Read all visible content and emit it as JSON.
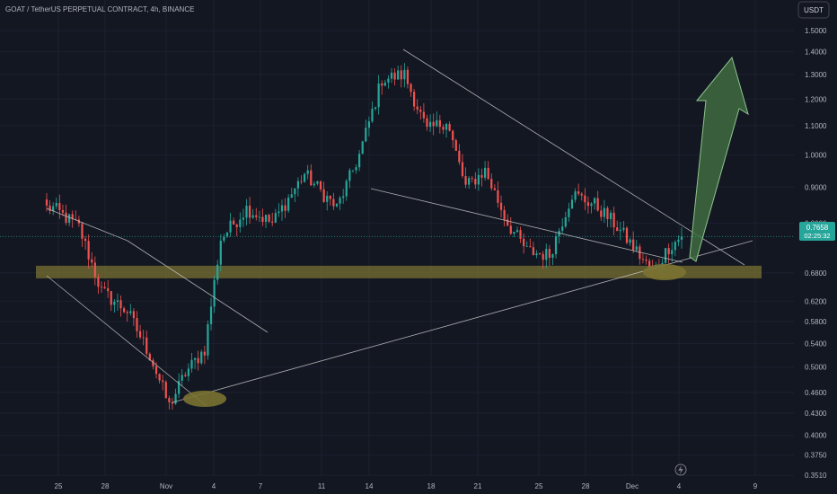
{
  "header": {
    "symbol_line": "GOAT / TetherUS PERPETUAL CONTRACT, 4h, BINANCE",
    "currency_button": "USDT"
  },
  "price_badge": {
    "price": "0.7658",
    "countdown": "02:25:32"
  },
  "colors": {
    "background": "#131722",
    "up": "#26a69a",
    "down": "#ef5350",
    "support_zone": "#7a7232",
    "arrow_fill": "#3f6b3f",
    "arrow_stroke": "#8fc48f",
    "trendline": "#c7c7c7"
  },
  "chart_data": {
    "type": "candlestick",
    "timeframe": "4h",
    "scale": "log",
    "x_ticks": [
      "25",
      "28",
      "Nov",
      "4",
      "7",
      "11",
      "14",
      "18",
      "21",
      "25",
      "28",
      "Dec",
      "4",
      "9"
    ],
    "y_ticks": [
      "1.5000",
      "1.4000",
      "1.3000",
      "1.2000",
      "1.1000",
      "1.0000",
      "0.9000",
      "0.8000",
      "0.6800",
      "0.6200",
      "0.5800",
      "0.5400",
      "0.5000",
      "0.4600",
      "0.4300",
      "0.4000",
      "0.3750",
      "0.3510"
    ],
    "last_price": 0.7658,
    "ylim": [
      0.34,
      1.62
    ],
    "support_zone": [
      0.668,
      0.696
    ],
    "key_points": [
      {
        "time_index": 2,
        "price": 0.84
      },
      {
        "time_index": 10,
        "price": 0.79
      },
      {
        "time_index": 17,
        "price": 0.64
      },
      {
        "time_index": 25,
        "price": 0.6
      },
      {
        "time_index": 32,
        "price": 0.52
      },
      {
        "time_index": 38,
        "price": 0.44
      },
      {
        "time_index": 43,
        "price": 0.49
      },
      {
        "time_index": 49,
        "price": 0.53
      },
      {
        "time_index": 54,
        "price": 0.76
      },
      {
        "time_index": 62,
        "price": 0.84
      },
      {
        "time_index": 70,
        "price": 0.8
      },
      {
        "time_index": 80,
        "price": 0.94
      },
      {
        "time_index": 90,
        "price": 0.84
      },
      {
        "time_index": 97,
        "price": 1.0
      },
      {
        "time_index": 104,
        "price": 1.28
      },
      {
        "time_index": 111,
        "price": 1.3
      },
      {
        "time_index": 118,
        "price": 1.08
      },
      {
        "time_index": 124,
        "price": 1.12
      },
      {
        "time_index": 130,
        "price": 0.9
      },
      {
        "time_index": 136,
        "price": 0.95
      },
      {
        "time_index": 143,
        "price": 0.8
      },
      {
        "time_index": 149,
        "price": 0.73
      },
      {
        "time_index": 156,
        "price": 0.72
      },
      {
        "time_index": 163,
        "price": 0.88
      },
      {
        "time_index": 170,
        "price": 0.85
      },
      {
        "time_index": 176,
        "price": 0.8
      },
      {
        "time_index": 182,
        "price": 0.74
      },
      {
        "time_index": 188,
        "price": 0.68
      },
      {
        "time_index": 193,
        "price": 0.74
      },
      {
        "time_index": 197,
        "price": 0.7658
      }
    ]
  }
}
